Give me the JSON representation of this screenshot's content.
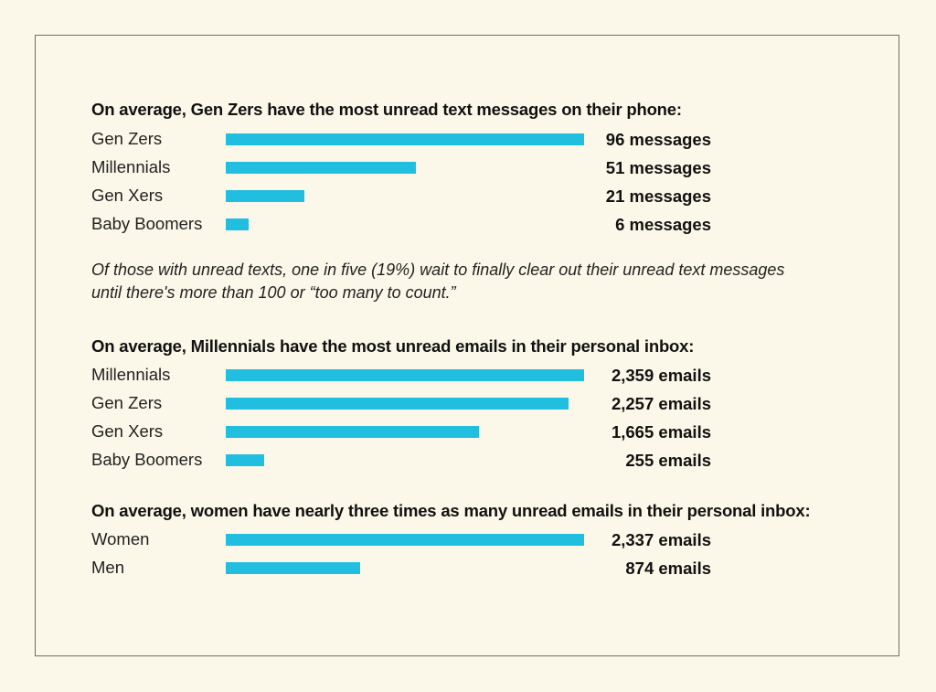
{
  "chart_data": [
    {
      "type": "bar",
      "orientation": "horizontal",
      "title": "On average, Gen Zers have the most unread text messages on their phone:",
      "categories": [
        "Gen Zers",
        "Millennials",
        "Gen Xers",
        "Baby Boomers"
      ],
      "values": [
        96,
        51,
        21,
        6
      ],
      "value_labels": [
        "96 messages",
        "51 messages",
        "21 messages",
        "6 messages"
      ],
      "color": "#22bedf"
    },
    {
      "type": "bar",
      "orientation": "horizontal",
      "title": "On average, Millennials have the most unread emails in their personal inbox:",
      "categories": [
        "Millennials",
        "Gen Zers",
        "Gen Xers",
        "Baby Boomers"
      ],
      "values": [
        2359,
        2257,
        1665,
        255
      ],
      "value_labels": [
        "2,359 emails",
        "2,257 emails",
        "1,665 emails",
        "255 emails"
      ],
      "color": "#22bedf"
    },
    {
      "type": "bar",
      "orientation": "horizontal",
      "title": "On average, women have nearly three times as many unread emails in their personal inbox:",
      "categories": [
        "Women",
        "Men"
      ],
      "values": [
        2337,
        874
      ],
      "value_labels": [
        "2,337 emails",
        "874 emails"
      ],
      "color": "#22bedf"
    }
  ],
  "note": "Of those with unread texts, one in five (19%) wait to finally clear out their unread text messages until there's more than 100 or “too many to count.”"
}
